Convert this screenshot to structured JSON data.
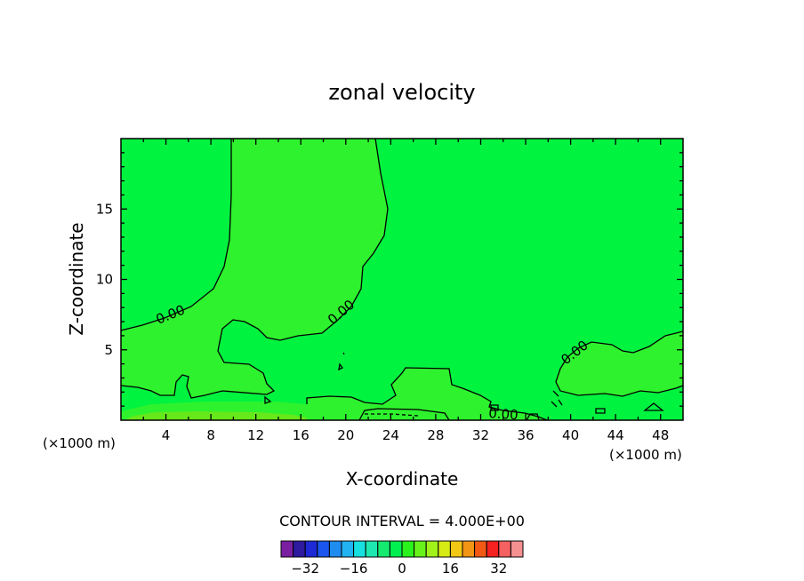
{
  "chart_data": {
    "type": "contour",
    "title": "zonal velocity",
    "xlabel": "X-coordinate",
    "ylabel": "Z-coordinate",
    "x_unit_label": "(×1000 m)",
    "xlim": [
      0,
      50
    ],
    "ylim": [
      0,
      20
    ],
    "x_ticks": [
      4,
      8,
      12,
      16,
      20,
      24,
      28,
      32,
      36,
      40,
      44,
      48
    ],
    "y_ticks": [
      5,
      10,
      15
    ],
    "contour_label": "0.00",
    "contour_interval_text": "CONTOUR INTERVAL = 4.000E+00",
    "colorbar": {
      "levels": [
        -36,
        -32,
        -28,
        -24,
        -20,
        -16,
        -12,
        -8,
        -4,
        0,
        4,
        8,
        12,
        16,
        20,
        24,
        28,
        32,
        36
      ],
      "tick_labels": [
        "-32",
        "-16",
        "0",
        "16",
        "32"
      ],
      "tick_values": [
        -32,
        -16,
        0,
        16,
        32
      ],
      "colors": [
        "#7a1fa2",
        "#2e1a9e",
        "#1d2ad6",
        "#1a55ee",
        "#1f8df0",
        "#22b4f2",
        "#18e0e0",
        "#1ee8b0",
        "#14ea70",
        "#00f050",
        "#2af21c",
        "#66f21a",
        "#a0f21a",
        "#d6ea14",
        "#f2c814",
        "#f29414",
        "#f25a14",
        "#f52020",
        "#f56060",
        "#f59090"
      ]
    },
    "fill_regions": {
      "background": "#00f33f",
      "weak_positive": "#2ef22e",
      "near_surface": "#66e81a"
    }
  }
}
